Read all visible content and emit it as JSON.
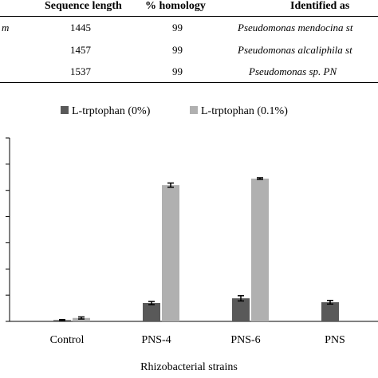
{
  "table": {
    "headers": [
      "Sequence length",
      "% homology",
      "Identified as"
    ],
    "rows": [
      {
        "prefix": "m",
        "length": "1445",
        "homology": "99",
        "identified": "Pseudomonas mendocina st"
      },
      {
        "prefix": "",
        "length": "1457",
        "homology": "99",
        "identified": "Pseudomonas alcaliphila st"
      },
      {
        "prefix": "",
        "length": "1537",
        "homology": "99",
        "identified": "Pseudomonas sp. PN"
      }
    ]
  },
  "chart_data": {
    "type": "bar",
    "title": "",
    "xlabel": "Rhizobacterial strains",
    "ylabel": "",
    "categories": [
      "Control",
      "PNS-4",
      "PNS-6",
      "PNS"
    ],
    "series": [
      {
        "name": "L-trptophan (0%)",
        "color": "#595959",
        "values": [
          0.5,
          7,
          8.8,
          7.3
        ],
        "errors": [
          0.2,
          0.6,
          1.0,
          0.7
        ]
      },
      {
        "name": "L-trptophan (0.1%)",
        "color": "#b0b0b0",
        "values": [
          1.3,
          52,
          54.5,
          null
        ],
        "errors": [
          0.4,
          0.8,
          0.3,
          null
        ]
      }
    ],
    "ylim": [
      0,
      70
    ],
    "grid": false,
    "legend": "top"
  }
}
